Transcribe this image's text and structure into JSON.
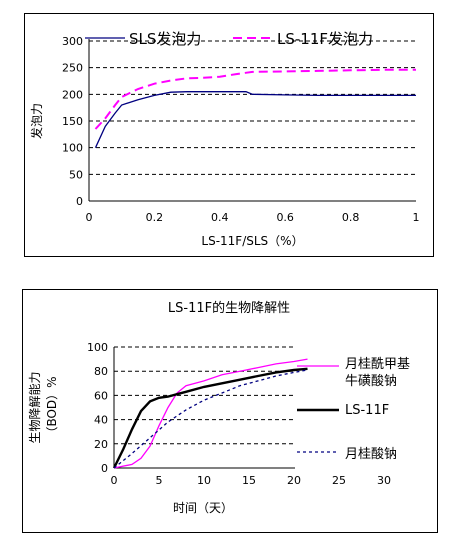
{
  "chart_data": [
    {
      "type": "line",
      "title": "",
      "xlabel": "LS-11F/SLS（%）",
      "ylabel": "发泡力",
      "xlim": [
        0,
        1
      ],
      "ylim": [
        0,
        300
      ],
      "x_ticks": [
        "0",
        "0.2",
        "0.4",
        "0.6",
        "0.8",
        "1"
      ],
      "y_ticks": [
        "0",
        "50",
        "100",
        "150",
        "200",
        "250",
        "300"
      ],
      "grid": "horizontal dashed",
      "legend_position": "top",
      "series": [
        {
          "name": "SLS发泡力",
          "color": "#000080",
          "style": "solid",
          "x": [
            0.02,
            0.05,
            0.08,
            0.1,
            0.15,
            0.2,
            0.25,
            0.3,
            0.35,
            0.4,
            0.45,
            0.48,
            0.5,
            0.6,
            0.7,
            0.8,
            0.9,
            1.0
          ],
          "y": [
            100,
            140,
            165,
            180,
            190,
            198,
            204,
            205,
            205,
            205,
            205,
            205,
            200,
            199,
            198,
            198,
            198,
            198
          ]
        },
        {
          "name": "LS-11F发泡力",
          "color": "#ff00ff",
          "style": "dashed",
          "x": [
            0.02,
            0.05,
            0.08,
            0.1,
            0.15,
            0.2,
            0.25,
            0.3,
            0.35,
            0.4,
            0.45,
            0.5,
            0.6,
            0.7,
            0.8,
            0.9,
            1.0
          ],
          "y": [
            135,
            155,
            180,
            195,
            210,
            220,
            226,
            230,
            231,
            233,
            238,
            242,
            243,
            244,
            245,
            246,
            246
          ]
        }
      ]
    },
    {
      "type": "line",
      "title": "LS-11F的生物降解性",
      "xlabel": "时间（天）",
      "ylabel": "生物降解能力（BOD）%",
      "xlim": [
        0,
        30
      ],
      "ylim": [
        0,
        100
      ],
      "x_ticks": [
        "0",
        "5",
        "10",
        "15",
        "20",
        "25",
        "30"
      ],
      "y_ticks": [
        "0",
        "20",
        "40",
        "60",
        "80",
        "100"
      ],
      "grid": "horizontal dashed",
      "legend_position": "right",
      "series": [
        {
          "name": "月桂酰甲基牛磺酸钠",
          "name_lines": [
            "月桂酰甲基",
            "牛磺酸钠"
          ],
          "color": "#ff00ff",
          "style": "solid",
          "x": [
            0,
            2,
            3,
            4,
            5,
            6,
            7,
            8,
            10,
            12,
            14,
            16,
            18,
            20,
            21.5
          ],
          "y": [
            0,
            3,
            8,
            18,
            35,
            50,
            62,
            68,
            72,
            77,
            80,
            83,
            86,
            88,
            90
          ]
        },
        {
          "name": "LS-11F",
          "color": "#000000",
          "style": "solid",
          "x": [
            0,
            1,
            2,
            3,
            4,
            5,
            6,
            7,
            8,
            10,
            12,
            14,
            16,
            18,
            20,
            21.5
          ],
          "y": [
            0,
            15,
            32,
            47,
            55,
            58,
            59,
            61,
            63,
            67,
            70,
            73,
            76,
            79,
            81,
            82
          ]
        },
        {
          "name": "月桂酸钠",
          "color": "#000080",
          "style": "dotted",
          "x": [
            0,
            2,
            4,
            6,
            8,
            10,
            12,
            14,
            16,
            18,
            20,
            21.5
          ],
          "y": [
            0,
            12,
            25,
            38,
            48,
            56,
            62,
            68,
            72,
            76,
            79,
            81
          ]
        }
      ]
    }
  ]
}
